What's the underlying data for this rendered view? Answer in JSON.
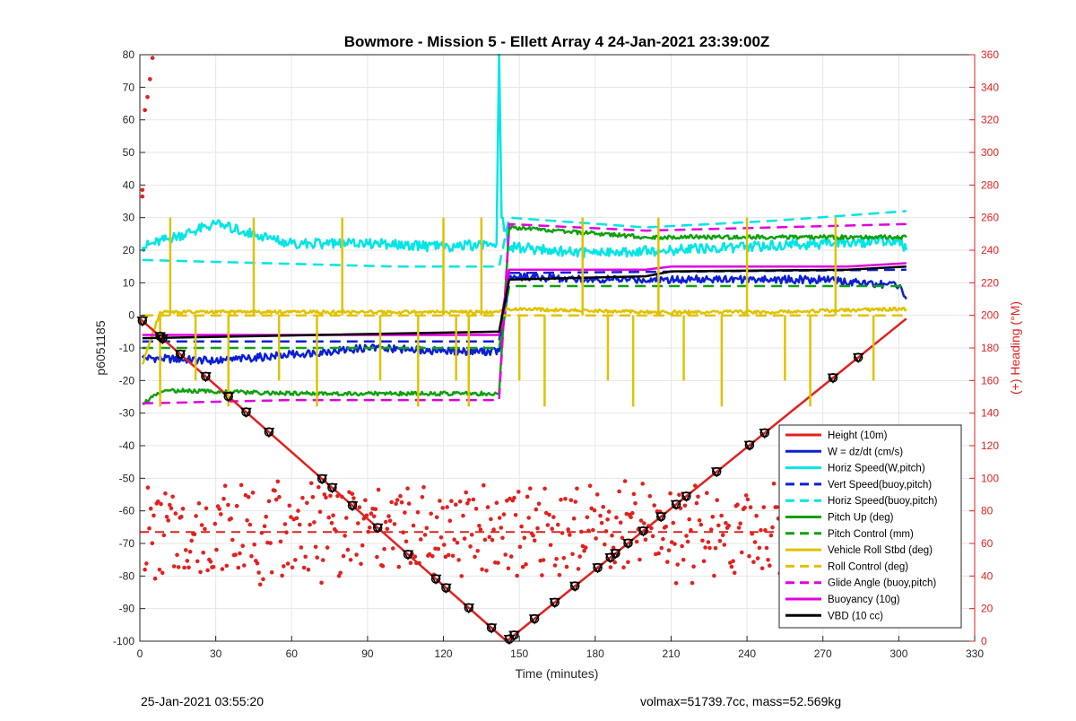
{
  "footer": {
    "left": "25-Jan-2021 03:55:20",
    "right": "volmax=51739.7cc, mass=52.569kg"
  },
  "chart_data": {
    "type": "line",
    "title": "Bowmore - Mission 5 - Ellett Array 4 24-Jan-2021 23:39:00Z",
    "xlabel": "Time (minutes)",
    "ylabel": "p6051185",
    "ylabel_right": "(+) Heading (°M)",
    "xlim": [
      0,
      330
    ],
    "ylim": [
      -100,
      80
    ],
    "ylim_right": [
      0,
      360
    ],
    "xticks": [
      0,
      30,
      60,
      90,
      120,
      150,
      180,
      210,
      240,
      270,
      300,
      330
    ],
    "yticks": [
      -100,
      -90,
      -80,
      -70,
      -60,
      -50,
      -40,
      -30,
      -20,
      -10,
      0,
      10,
      20,
      30,
      40,
      50,
      60,
      70,
      80
    ],
    "yticks_right": [
      0,
      20,
      40,
      60,
      80,
      100,
      120,
      140,
      160,
      180,
      200,
      220,
      240,
      260,
      280,
      300,
      320,
      340,
      360
    ],
    "grid": true,
    "legend_position": "bottom-right",
    "series": [
      {
        "name": "Height (10m)",
        "color": "#e0221f",
        "style": "solid",
        "points": [
          [
            0,
            -1
          ],
          [
            145,
            -100
          ],
          [
            303,
            -1
          ]
        ]
      },
      {
        "name": "W = dz/dt (cm/s)",
        "color": "#0c1fd6",
        "style": "solid",
        "points": [
          [
            1,
            -13
          ],
          [
            30,
            -14
          ],
          [
            60,
            -12
          ],
          [
            90,
            -10
          ],
          [
            120,
            -11
          ],
          [
            142,
            -11
          ],
          [
            144,
            -1
          ],
          [
            146,
            12
          ],
          [
            180,
            11
          ],
          [
            210,
            11
          ],
          [
            240,
            11
          ],
          [
            270,
            11
          ],
          [
            300,
            9
          ],
          [
            303,
            5
          ]
        ]
      },
      {
        "name": "Horiz Speed(W,pitch)",
        "color": "#00e5e5",
        "style": "solid",
        "points": [
          [
            1,
            21
          ],
          [
            30,
            28
          ],
          [
            60,
            22
          ],
          [
            90,
            22
          ],
          [
            120,
            21
          ],
          [
            141,
            22
          ],
          [
            142,
            80
          ],
          [
            143,
            30
          ],
          [
            146,
            21
          ],
          [
            180,
            19
          ],
          [
            210,
            20
          ],
          [
            240,
            21
          ],
          [
            270,
            22
          ],
          [
            300,
            23
          ],
          [
            303,
            20
          ]
        ]
      },
      {
        "name": "Vert Speed(buoy,pitch)",
        "color": "#0c1fd6",
        "style": "dashed",
        "points": [
          [
            1,
            -8
          ],
          [
            142,
            -8
          ],
          [
            146,
            13
          ],
          [
            303,
            14
          ]
        ]
      },
      {
        "name": "Horiz Speed(buoy,pitch)",
        "color": "#00e5e5",
        "style": "dashed",
        "points": [
          [
            1,
            17
          ],
          [
            50,
            16
          ],
          [
            100,
            15
          ],
          [
            142,
            15
          ],
          [
            146,
            30
          ],
          [
            200,
            27
          ],
          [
            250,
            29
          ],
          [
            303,
            32
          ]
        ]
      },
      {
        "name": "Pitch Up (deg)",
        "color": "#10a010",
        "style": "solid",
        "points": [
          [
            1,
            -27
          ],
          [
            10,
            -23
          ],
          [
            60,
            -24
          ],
          [
            100,
            -24
          ],
          [
            142,
            -24
          ],
          [
            146,
            27
          ],
          [
            200,
            24
          ],
          [
            250,
            24
          ],
          [
            303,
            24
          ]
        ]
      },
      {
        "name": "Pitch Control (mm)",
        "color": "#10a010",
        "style": "dashed",
        "points": [
          [
            1,
            -10
          ],
          [
            142,
            -10
          ],
          [
            146,
            9
          ],
          [
            303,
            9
          ]
        ]
      },
      {
        "name": "Vehicle Roll Stbd (deg)",
        "color": "#e0c200",
        "style": "solid",
        "points": [
          [
            1,
            -15
          ],
          [
            8,
            1
          ],
          [
            60,
            1
          ],
          [
            100,
            1
          ],
          [
            142,
            1
          ],
          [
            146,
            2
          ],
          [
            200,
            1
          ],
          [
            250,
            1
          ],
          [
            303,
            2
          ]
        ]
      },
      {
        "name": "Roll Control (deg)",
        "color": "#e0c200",
        "style": "dashed",
        "points": [
          [
            1,
            0
          ],
          [
            303,
            0
          ]
        ]
      },
      {
        "name": "Glide Angle (buoy,pitch)",
        "color": "#e000e0",
        "style": "dashed",
        "points": [
          [
            1,
            -27
          ],
          [
            60,
            -26
          ],
          [
            142,
            -26
          ],
          [
            146,
            28
          ],
          [
            200,
            26
          ],
          [
            250,
            27
          ],
          [
            303,
            28
          ]
        ]
      },
      {
        "name": "Buoyancy (10g)",
        "color": "#e000e0",
        "style": "solid",
        "points": [
          [
            1,
            -6
          ],
          [
            142,
            -6
          ],
          [
            146,
            14
          ],
          [
            200,
            14
          ],
          [
            210,
            15
          ],
          [
            280,
            15
          ],
          [
            303,
            16
          ]
        ]
      },
      {
        "name": "VBD (10 cc)",
        "color": "#000000",
        "style": "solid",
        "points": [
          [
            1,
            -7
          ],
          [
            142,
            -5
          ],
          [
            146,
            11
          ],
          [
            200,
            12
          ],
          [
            210,
            13.5
          ],
          [
            280,
            14
          ],
          [
            303,
            15
          ]
        ]
      }
    ],
    "heading_series": {
      "color": "#e0221f",
      "style": "markers",
      "axis": "right",
      "mean": 67,
      "range": [
        36,
        90
      ]
    },
    "heading_target": {
      "color": "#e0221f",
      "style": "dashed",
      "axis": "right",
      "value": 67
    },
    "markers": {
      "color": "#000000",
      "style": "triangle-circle",
      "x": [
        1,
        8,
        9,
        16,
        26,
        35,
        42,
        51,
        72,
        76,
        84,
        94,
        106,
        117,
        121,
        130,
        139,
        146,
        148,
        156,
        164,
        172,
        181,
        186,
        188,
        193,
        199,
        206,
        212,
        216,
        228,
        241,
        247,
        274,
        284
      ]
    }
  }
}
